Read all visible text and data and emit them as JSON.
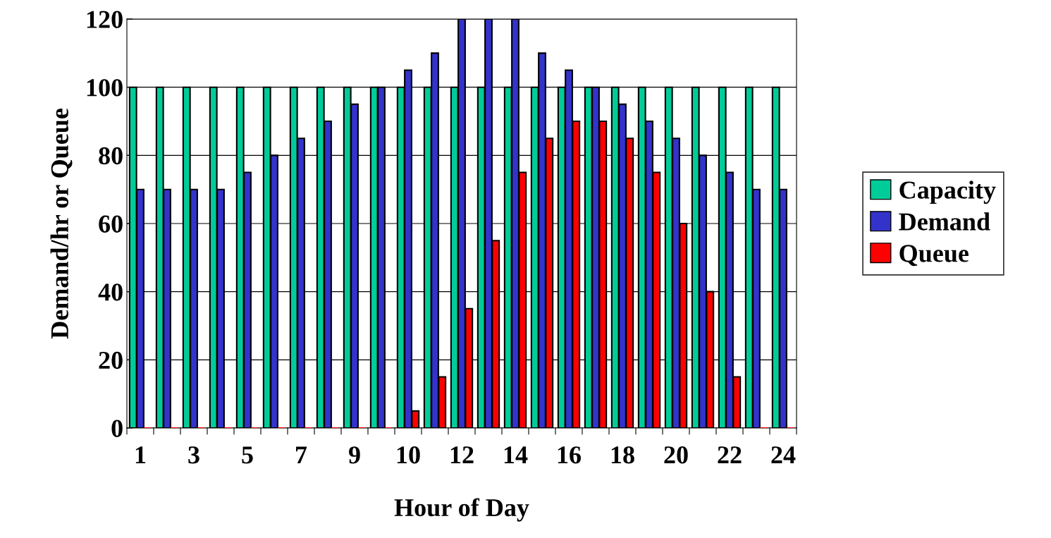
{
  "chart_data": {
    "type": "bar",
    "xlabel": "Hour of Day",
    "ylabel": "Demand/hr or Queue",
    "categories": [
      "1",
      null,
      "3",
      null,
      "5",
      null,
      "7",
      null,
      "9",
      null,
      "10",
      null,
      "12",
      null,
      "14",
      null,
      "16",
      null,
      "18",
      null,
      "20",
      null,
      "22",
      null,
      "24"
    ],
    "series": [
      {
        "name": "Capacity",
        "color": "#00cc99",
        "values": [
          100,
          100,
          100,
          100,
          100,
          100,
          100,
          100,
          100,
          100,
          100,
          100,
          100,
          100,
          100,
          100,
          100,
          100,
          100,
          100,
          100,
          100,
          100,
          100,
          100
        ]
      },
      {
        "name": "Demand",
        "color": "#3333cc",
        "values": [
          70,
          70,
          70,
          70,
          75,
          80,
          85,
          90,
          95,
          100,
          105,
          110,
          120,
          120,
          120,
          110,
          105,
          100,
          95,
          90,
          85,
          80,
          75,
          70,
          70
        ]
      },
      {
        "name": "Queue",
        "color": "#ff0000",
        "values": [
          0,
          0,
          0,
          0,
          0,
          0,
          0,
          0,
          0,
          0,
          5,
          15,
          35,
          55,
          75,
          85,
          90,
          90,
          85,
          75,
          60,
          40,
          15,
          0,
          0
        ]
      }
    ],
    "ylim": [
      0,
      120
    ],
    "yticks": [
      0,
      20,
      40,
      60,
      80,
      100,
      120
    ],
    "grid": "y",
    "legend": "right"
  }
}
